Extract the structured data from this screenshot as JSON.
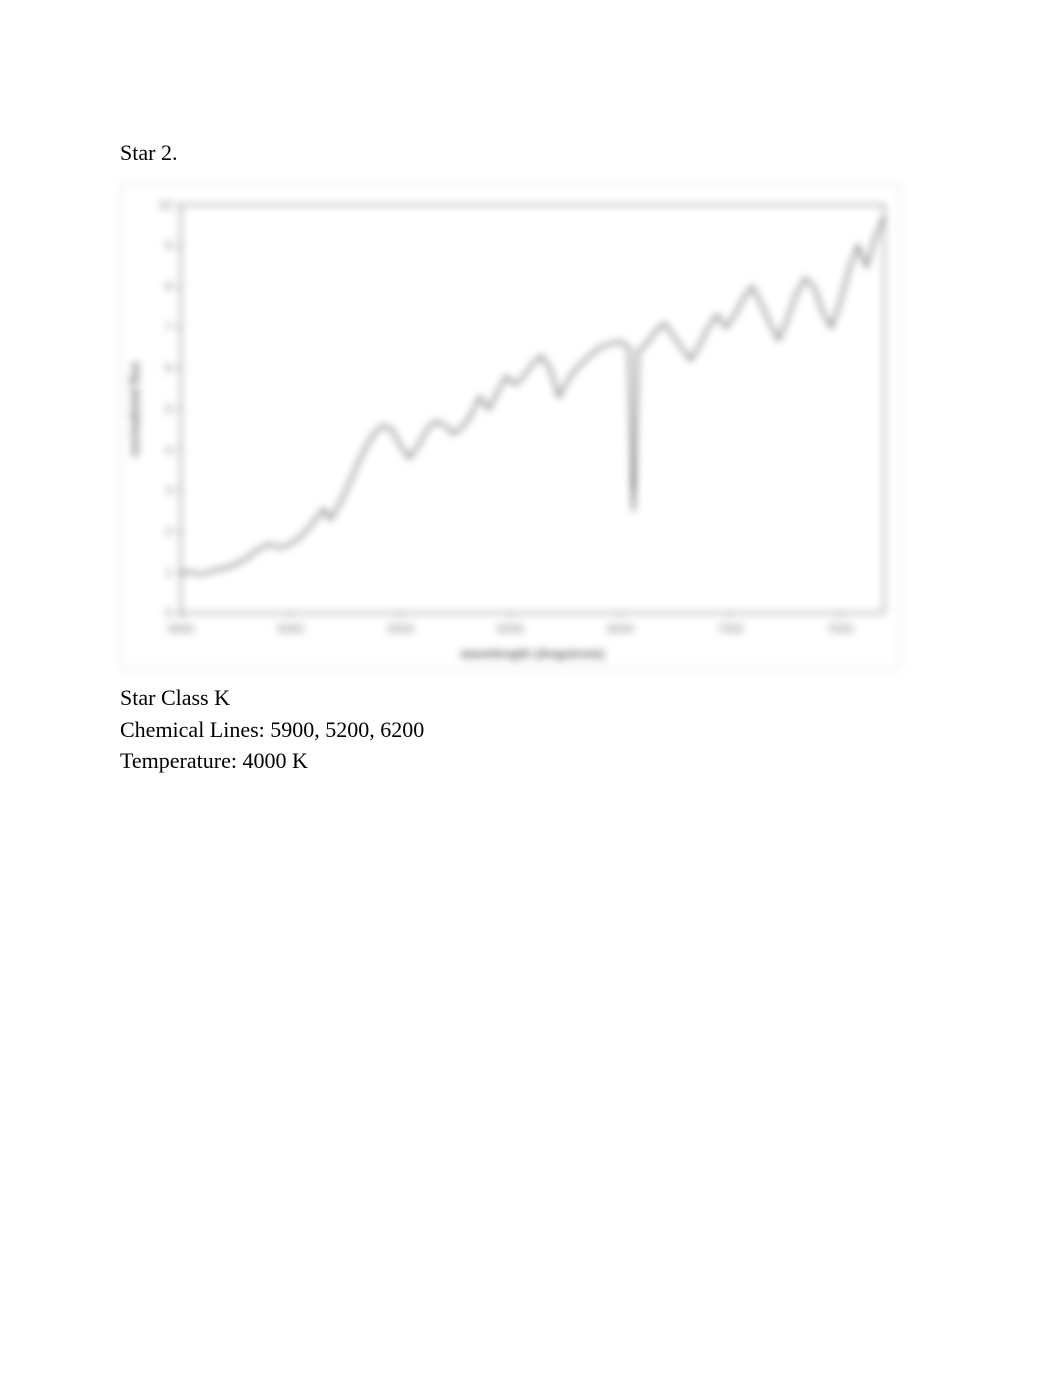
{
  "heading": "Star 2.",
  "caption": {
    "line1": "Star Class K",
    "line2": "Chemical Lines: 5900, 5200, 6200",
    "line3": "Temperature: 4000 K"
  },
  "chart": {
    "type": "line",
    "background_color": "#ffffff",
    "border_color": "#d8d8d8",
    "axis_color": "#555555",
    "tick_label_color": "#777777",
    "series_color": "#2b2b2b",
    "x_title": "wavelength (Angstrom)",
    "y_title": "normalized flux",
    "xlim": [
      4500,
      7700
    ],
    "ylim": [
      0,
      10
    ],
    "x_ticks": [
      4500,
      5000,
      5500,
      6000,
      6500,
      7000,
      7500
    ],
    "y_ticks": [
      0,
      1,
      2,
      3,
      4,
      5,
      6,
      7,
      8,
      9,
      10
    ],
    "points": [
      [
        4500,
        1.0
      ],
      [
        4550,
        1.0
      ],
      [
        4600,
        0.95
      ],
      [
        4650,
        1.05
      ],
      [
        4700,
        1.1
      ],
      [
        4750,
        1.2
      ],
      [
        4800,
        1.35
      ],
      [
        4850,
        1.55
      ],
      [
        4900,
        1.7
      ],
      [
        4950,
        1.6
      ],
      [
        5000,
        1.7
      ],
      [
        5050,
        1.9
      ],
      [
        5100,
        2.2
      ],
      [
        5150,
        2.55
      ],
      [
        5180,
        2.3
      ],
      [
        5220,
        2.65
      ],
      [
        5260,
        3.1
      ],
      [
        5300,
        3.6
      ],
      [
        5340,
        4.05
      ],
      [
        5380,
        4.4
      ],
      [
        5420,
        4.6
      ],
      [
        5460,
        4.5
      ],
      [
        5500,
        4.1
      ],
      [
        5540,
        3.8
      ],
      [
        5580,
        4.1
      ],
      [
        5620,
        4.5
      ],
      [
        5660,
        4.7
      ],
      [
        5700,
        4.6
      ],
      [
        5740,
        4.4
      ],
      [
        5780,
        4.55
      ],
      [
        5820,
        4.85
      ],
      [
        5860,
        5.3
      ],
      [
        5900,
        5.0
      ],
      [
        5940,
        5.4
      ],
      [
        5980,
        5.8
      ],
      [
        6020,
        5.6
      ],
      [
        6060,
        5.8
      ],
      [
        6100,
        6.1
      ],
      [
        6140,
        6.3
      ],
      [
        6180,
        6.0
      ],
      [
        6220,
        5.3
      ],
      [
        6260,
        5.7
      ],
      [
        6300,
        6.0
      ],
      [
        6340,
        6.2
      ],
      [
        6380,
        6.4
      ],
      [
        6420,
        6.55
      ],
      [
        6460,
        6.6
      ],
      [
        6500,
        6.65
      ],
      [
        6540,
        6.5
      ],
      [
        6560,
        2.5
      ],
      [
        6580,
        6.4
      ],
      [
        6620,
        6.6
      ],
      [
        6660,
        6.9
      ],
      [
        6700,
        7.1
      ],
      [
        6740,
        6.8
      ],
      [
        6780,
        6.5
      ],
      [
        6820,
        6.2
      ],
      [
        6860,
        6.55
      ],
      [
        6900,
        7.0
      ],
      [
        6940,
        7.3
      ],
      [
        6980,
        7.0
      ],
      [
        7020,
        7.3
      ],
      [
        7060,
        7.7
      ],
      [
        7100,
        8.0
      ],
      [
        7140,
        7.6
      ],
      [
        7180,
        7.1
      ],
      [
        7220,
        6.7
      ],
      [
        7260,
        7.2
      ],
      [
        7300,
        7.8
      ],
      [
        7340,
        8.2
      ],
      [
        7380,
        8.0
      ],
      [
        7420,
        7.4
      ],
      [
        7460,
        7.0
      ],
      [
        7500,
        7.6
      ],
      [
        7540,
        8.4
      ],
      [
        7580,
        9.0
      ],
      [
        7620,
        8.5
      ],
      [
        7660,
        9.2
      ],
      [
        7700,
        9.7
      ]
    ]
  }
}
